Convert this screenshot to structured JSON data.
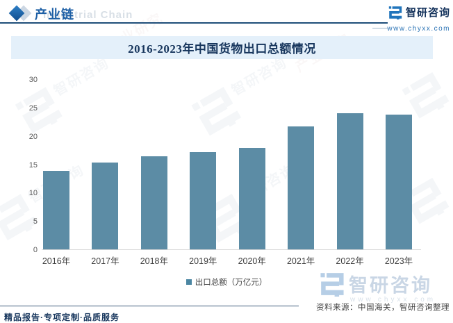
{
  "header": {
    "section_title": "产业链",
    "section_watermark": "Industrial Chain",
    "brand_name": "智研咨询",
    "brand_url": "www.chyxx.com"
  },
  "chart_data": {
    "type": "bar",
    "title": "2016-2023年中国货物出口总额情况",
    "categories": [
      "2016年",
      "2017年",
      "2018年",
      "2019年",
      "2020年",
      "2021年",
      "2022年",
      "2023年"
    ],
    "values": [
      13.8,
      15.3,
      16.4,
      17.2,
      17.9,
      21.7,
      24.0,
      23.8
    ],
    "series_name": "出口总额（万亿元）",
    "xlabel": "",
    "ylabel": "",
    "ylim": [
      0,
      30
    ],
    "yticks": [
      0,
      5,
      10,
      15,
      20,
      25,
      30
    ],
    "grid": false,
    "legend_position": "bottom",
    "bar_color": "#5c8ca5"
  },
  "footer": {
    "source": "资料来源：中国海关，智研咨询整理",
    "tagline": "精品报告·专项定制·品质服务"
  },
  "watermark": {
    "brand_name": "智研咨询",
    "brand_url": "www.chyxx.com",
    "scatter_text": "智研咨询"
  },
  "colors": {
    "bar": "#5c8ca5",
    "banner_bg": "#e4f0fa",
    "title_text": "#17365d",
    "accent_blue": "#1d5fa5",
    "brand_blue": "#2175bc"
  }
}
